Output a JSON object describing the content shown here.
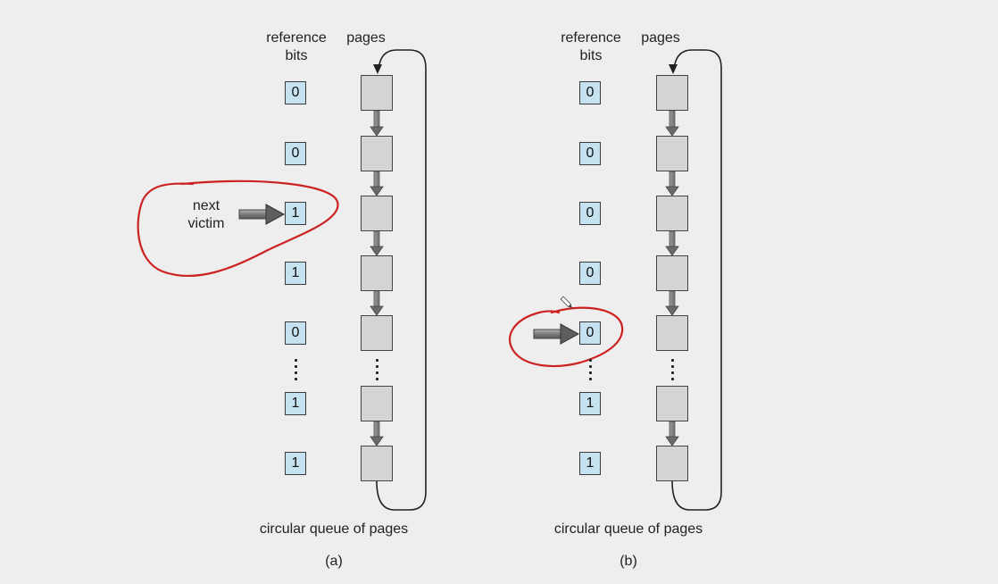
{
  "diagrams": [
    {
      "id": "a",
      "header_bits": "reference\nbits",
      "header_pages": "pages",
      "bits": [
        "0",
        "0",
        "1",
        "1",
        "0",
        "1",
        "1"
      ],
      "pointer_label": "next\nvictim",
      "pointer_index": 2,
      "queue_caption": "circular queue of pages",
      "panel_label": "(a)"
    },
    {
      "id": "b",
      "header_bits": "reference\nbits",
      "header_pages": "pages",
      "bits": [
        "0",
        "0",
        "0",
        "0",
        "0",
        "1",
        "1"
      ],
      "pointer_index": 4,
      "queue_caption": "circular queue of pages",
      "panel_label": "(b)"
    }
  ],
  "colors": {
    "background": "#eeeeee",
    "bit_fill": "#c6e2f0",
    "page_fill": "#d4d4d4",
    "annotation": "#cc2222",
    "arrow": "#666666"
  },
  "annotations": [
    "red-circle-around-next-victim",
    "red-circle-around-pointer-b",
    "pencil-cursor-icon"
  ]
}
